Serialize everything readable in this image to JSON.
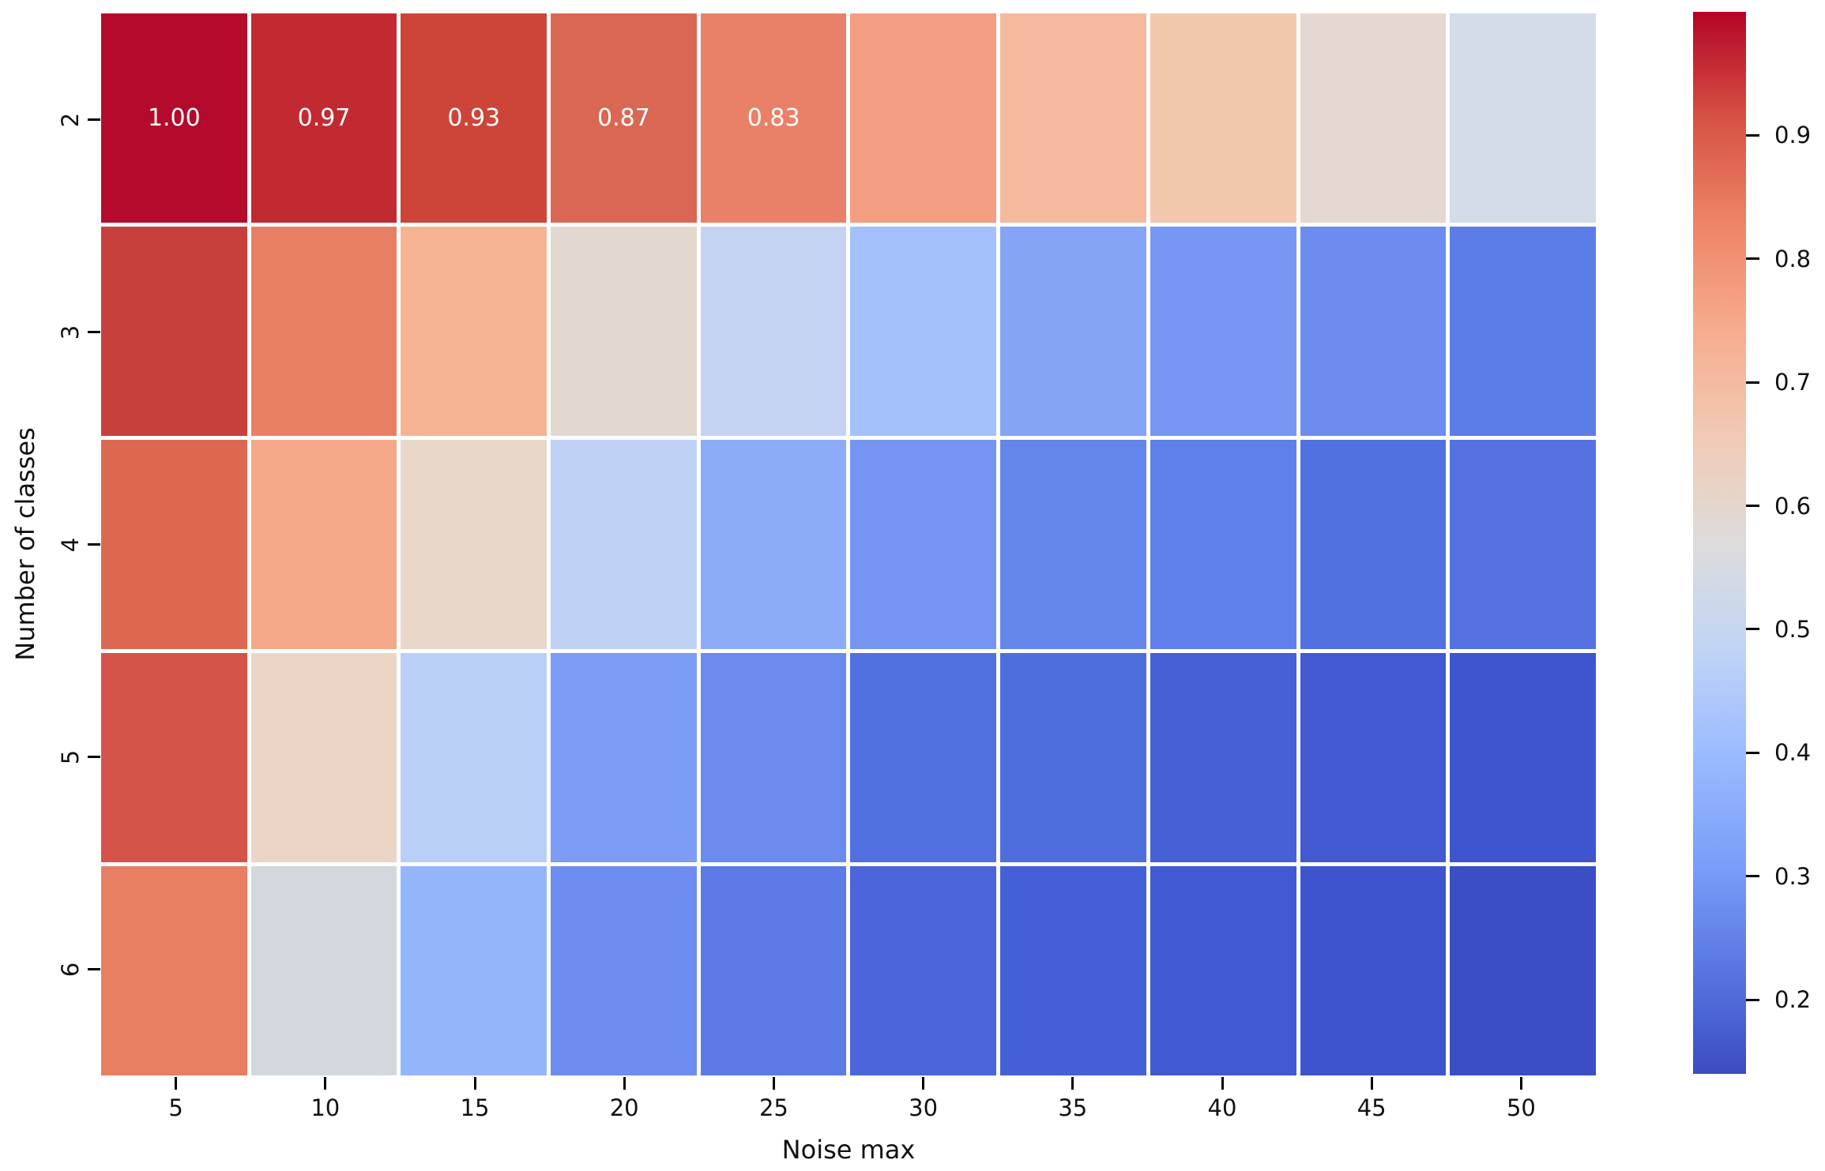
{
  "figure": {
    "background_color": "#ffffff"
  },
  "chart_data": {
    "type": "heatmap",
    "title": "",
    "xlabel": "Noise max",
    "ylabel": "Number of classes",
    "x_categories": [
      "5",
      "10",
      "15",
      "20",
      "25",
      "30",
      "35",
      "40",
      "45",
      "50"
    ],
    "y_categories": [
      "2",
      "3",
      "4",
      "5",
      "6"
    ],
    "colormap": "coolwarm",
    "vmin": 0.14,
    "vmax": 1.0,
    "grid_line_color": "#ffffff",
    "series": [
      {
        "name": "2",
        "values": [
          1.0,
          0.97,
          0.93,
          0.87,
          0.83,
          0.78,
          0.72,
          0.68,
          0.62,
          0.54
        ]
      },
      {
        "name": "3",
        "values": [
          0.92,
          0.82,
          0.72,
          0.6,
          0.48,
          0.42,
          0.37,
          0.34,
          0.31,
          0.28
        ]
      },
      {
        "name": "4",
        "values": [
          0.86,
          0.74,
          0.6,
          0.47,
          0.39,
          0.34,
          0.3,
          0.29,
          0.26,
          0.26
        ]
      },
      {
        "name": "5",
        "values": [
          0.89,
          0.63,
          0.46,
          0.36,
          0.31,
          0.26,
          0.24,
          0.22,
          0.2,
          0.19
        ]
      },
      {
        "name": "6",
        "values": [
          0.82,
          0.55,
          0.41,
          0.32,
          0.28,
          0.23,
          0.22,
          0.2,
          0.18,
          0.14
        ]
      }
    ],
    "cell_colors": [
      [
        "#b40a2b",
        "#c22a31",
        "#cd4539",
        "#da6753",
        "#e98168",
        "#f39e82",
        "#f5b99e",
        "#f3c7ae",
        "#e5d8d0",
        "#d3dce9"
      ],
      [
        "#c8403c",
        "#e87f64",
        "#f5b392",
        "#e2d8d0",
        "#c4d3f1",
        "#a3c0fa",
        "#86a4f6",
        "#7697f3",
        "#6c8cef",
        "#5c7ce8"
      ],
      [
        "#dd6852",
        "#f6a988",
        "#e9d7ca",
        "#bfd2f6",
        "#8cacf8",
        "#7495f2",
        "#6485ec",
        "#5f80ea",
        "#5271e1",
        "#5472e2"
      ],
      [
        "#d4544a",
        "#ebd5c6",
        "#b9cff8",
        "#7d9cf6",
        "#6b8bef",
        "#5271e0",
        "#4f6ede",
        "#4660d6",
        "#4259d2",
        "#3f55cf"
      ],
      [
        "#e87e62",
        "#d3d8de",
        "#93b5fa",
        "#6e8df0",
        "#5c7be6",
        "#4a66da",
        "#4560d6",
        "#4159d1",
        "#3e54ce",
        "#3b4ec5"
      ]
    ],
    "annotations": [
      [
        "1.00",
        "0.97",
        "0.93",
        "0.87",
        "0.83",
        "",
        "",
        "",
        "",
        ""
      ],
      [
        "",
        "",
        "",
        "",
        "",
        "",
        "",
        "",
        "",
        ""
      ],
      [
        "",
        "",
        "",
        "",
        "",
        "",
        "",
        "",
        "",
        ""
      ],
      [
        "",
        "",
        "",
        "",
        "",
        "",
        "",
        "",
        "",
        ""
      ],
      [
        "",
        "",
        "",
        "",
        "",
        "",
        "",
        "",
        "",
        ""
      ]
    ],
    "annotation_text_color": "#ffffff",
    "legend_position": "none",
    "grid": false,
    "colorbar": {
      "position": "right",
      "tick_labels": [
        "0.9",
        "0.8",
        "0.7",
        "0.6",
        "0.5",
        "0.4",
        "0.3",
        "0.2"
      ],
      "tick_values": [
        0.9,
        0.8,
        0.7,
        0.6,
        0.5,
        0.4,
        0.3,
        0.2
      ],
      "gradient_stops": [
        {
          "pos": 0.0,
          "color": "#b40426"
        },
        {
          "pos": 0.1,
          "color": "#d65244"
        },
        {
          "pos": 0.2,
          "color": "#ee8468"
        },
        {
          "pos": 0.3,
          "color": "#f7ac8e"
        },
        {
          "pos": 0.4,
          "color": "#f2cab5"
        },
        {
          "pos": 0.5,
          "color": "#dddcdb"
        },
        {
          "pos": 0.6,
          "color": "#c0d4f5"
        },
        {
          "pos": 0.7,
          "color": "#9abbff"
        },
        {
          "pos": 0.8,
          "color": "#7b9ff9"
        },
        {
          "pos": 0.9,
          "color": "#5977e3"
        },
        {
          "pos": 1.0,
          "color": "#3b4cc0"
        }
      ]
    }
  }
}
